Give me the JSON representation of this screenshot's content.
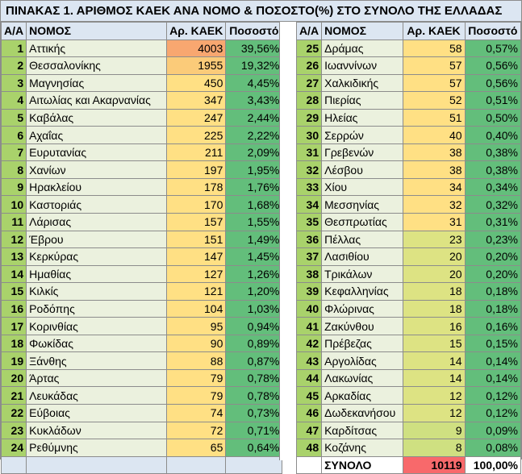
{
  "title": "ΠΙΝΑΚΑΣ 1. ΑΡΙΘΜΟΣ ΚΑΕΚ ΑΝΑ ΝΟΜΟ & ΠΟΣΟΣΤΟ(%) ΣΤΟ ΣΥΝΟΛΟ ΤΗΣ ΕΛΛΑΔΑΣ",
  "headers": {
    "aa": "Α/Α",
    "name": "ΝΟΜΟΣ",
    "count": "Αρ. ΚΑΕΚ",
    "pct": "Ποσοστό"
  },
  "left_rows": [
    {
      "aa": "1",
      "name": "Αττικής",
      "count": "4003",
      "pct": "39,56%"
    },
    {
      "aa": "2",
      "name": "Θεσσαλονίκης",
      "count": "1955",
      "pct": "19,32%"
    },
    {
      "aa": "3",
      "name": "Μαγνησίας",
      "count": "450",
      "pct": "4,45%"
    },
    {
      "aa": "4",
      "name": "Αιτωλίας και Ακαρνανίας",
      "count": "347",
      "pct": "3,43%"
    },
    {
      "aa": "5",
      "name": "Καβάλας",
      "count": "247",
      "pct": "2,44%"
    },
    {
      "aa": "6",
      "name": "Αχαΐας",
      "count": "225",
      "pct": "2,22%"
    },
    {
      "aa": "7",
      "name": "Ευρυτανίας",
      "count": "211",
      "pct": "2,09%"
    },
    {
      "aa": "8",
      "name": "Χανίων",
      "count": "197",
      "pct": "1,95%"
    },
    {
      "aa": "9",
      "name": "Ηρακλείου",
      "count": "178",
      "pct": "1,76%"
    },
    {
      "aa": "10",
      "name": "Καστοριάς",
      "count": "170",
      "pct": "1,68%"
    },
    {
      "aa": "11",
      "name": "Λάρισας",
      "count": "157",
      "pct": "1,55%"
    },
    {
      "aa": "12",
      "name": "Έβρου",
      "count": "151",
      "pct": "1,49%"
    },
    {
      "aa": "13",
      "name": "Κερκύρας",
      "count": "147",
      "pct": "1,45%"
    },
    {
      "aa": "14",
      "name": "Ημαθίας",
      "count": "127",
      "pct": "1,26%"
    },
    {
      "aa": "15",
      "name": "Κιλκίς",
      "count": "121",
      "pct": "1,20%"
    },
    {
      "aa": "16",
      "name": "Ροδόπης",
      "count": "104",
      "pct": "1,03%"
    },
    {
      "aa": "17",
      "name": "Κορινθίας",
      "count": "95",
      "pct": "0,94%"
    },
    {
      "aa": "18",
      "name": "Φωκίδας",
      "count": "90",
      "pct": "0,89%"
    },
    {
      "aa": "19",
      "name": "Ξάνθης",
      "count": "88",
      "pct": "0,87%"
    },
    {
      "aa": "20",
      "name": "Άρτας",
      "count": "79",
      "pct": "0,78%"
    },
    {
      "aa": "21",
      "name": "Λευκάδας",
      "count": "79",
      "pct": "0,78%"
    },
    {
      "aa": "22",
      "name": "Εύβοιας",
      "count": "74",
      "pct": "0,73%"
    },
    {
      "aa": "23",
      "name": "Κυκλάδων",
      "count": "72",
      "pct": "0,71%"
    },
    {
      "aa": "24",
      "name": "Ρεθύμνης",
      "count": "65",
      "pct": "0,64%"
    }
  ],
  "right_rows": [
    {
      "aa": "25",
      "name": "Δράμας",
      "count": "58",
      "pct": "0,57%"
    },
    {
      "aa": "26",
      "name": "Ιωαννίνων",
      "count": "57",
      "pct": "0,56%"
    },
    {
      "aa": "27",
      "name": "Χαλκιδικής",
      "count": "57",
      "pct": "0,56%"
    },
    {
      "aa": "28",
      "name": "Πιερίας",
      "count": "52",
      "pct": "0,51%"
    },
    {
      "aa": "29",
      "name": "Ηλείας",
      "count": "51",
      "pct": "0,50%"
    },
    {
      "aa": "30",
      "name": "Σερρών",
      "count": "40",
      "pct": "0,40%"
    },
    {
      "aa": "31",
      "name": "Γρεβενών",
      "count": "38",
      "pct": "0,38%"
    },
    {
      "aa": "32",
      "name": "Λέσβου",
      "count": "38",
      "pct": "0,38%"
    },
    {
      "aa": "33",
      "name": "Χίου",
      "count": "34",
      "pct": "0,34%"
    },
    {
      "aa": "34",
      "name": "Μεσσηνίας",
      "count": "32",
      "pct": "0,32%"
    },
    {
      "aa": "35",
      "name": "Θεσπρωτίας",
      "count": "31",
      "pct": "0,31%"
    },
    {
      "aa": "36",
      "name": "Πέλλας",
      "count": "23",
      "pct": "0,23%"
    },
    {
      "aa": "37",
      "name": "Λασιθίου",
      "count": "20",
      "pct": "0,20%"
    },
    {
      "aa": "38",
      "name": "Τρικάλων",
      "count": "20",
      "pct": "0,20%"
    },
    {
      "aa": "39",
      "name": "Κεφαλληνίας",
      "count": "18",
      "pct": "0,18%"
    },
    {
      "aa": "40",
      "name": "Φλώρινας",
      "count": "18",
      "pct": "0,18%"
    },
    {
      "aa": "41",
      "name": "Ζακύνθου",
      "count": "16",
      "pct": "0,16%"
    },
    {
      "aa": "42",
      "name": "Πρέβεζας",
      "count": "15",
      "pct": "0,15%"
    },
    {
      "aa": "43",
      "name": "Αργολίδας",
      "count": "14",
      "pct": "0,14%"
    },
    {
      "aa": "44",
      "name": "Λακωνίας",
      "count": "14",
      "pct": "0,14%"
    },
    {
      "aa": "45",
      "name": "Αρκαδίας",
      "count": "12",
      "pct": "0,12%"
    },
    {
      "aa": "46",
      "name": "Δωδεκανήσου",
      "count": "12",
      "pct": "0,12%"
    },
    {
      "aa": "47",
      "name": "Καρδίτσας",
      "count": "9",
      "pct": "0,09%"
    },
    {
      "aa": "48",
      "name": "Κοζάνης",
      "count": "8",
      "pct": "0,08%"
    }
  ],
  "total": {
    "label": "ΣΥΝΟΛΟ",
    "count": "10119",
    "pct": "100,00%"
  },
  "colors": {
    "header_bg": "#dce6f2",
    "aa_bg": "#a9d26b",
    "name_bg": "#ebf1de",
    "pct_bg": "#63be7b",
    "total_count_bg": "#f8696b"
  }
}
